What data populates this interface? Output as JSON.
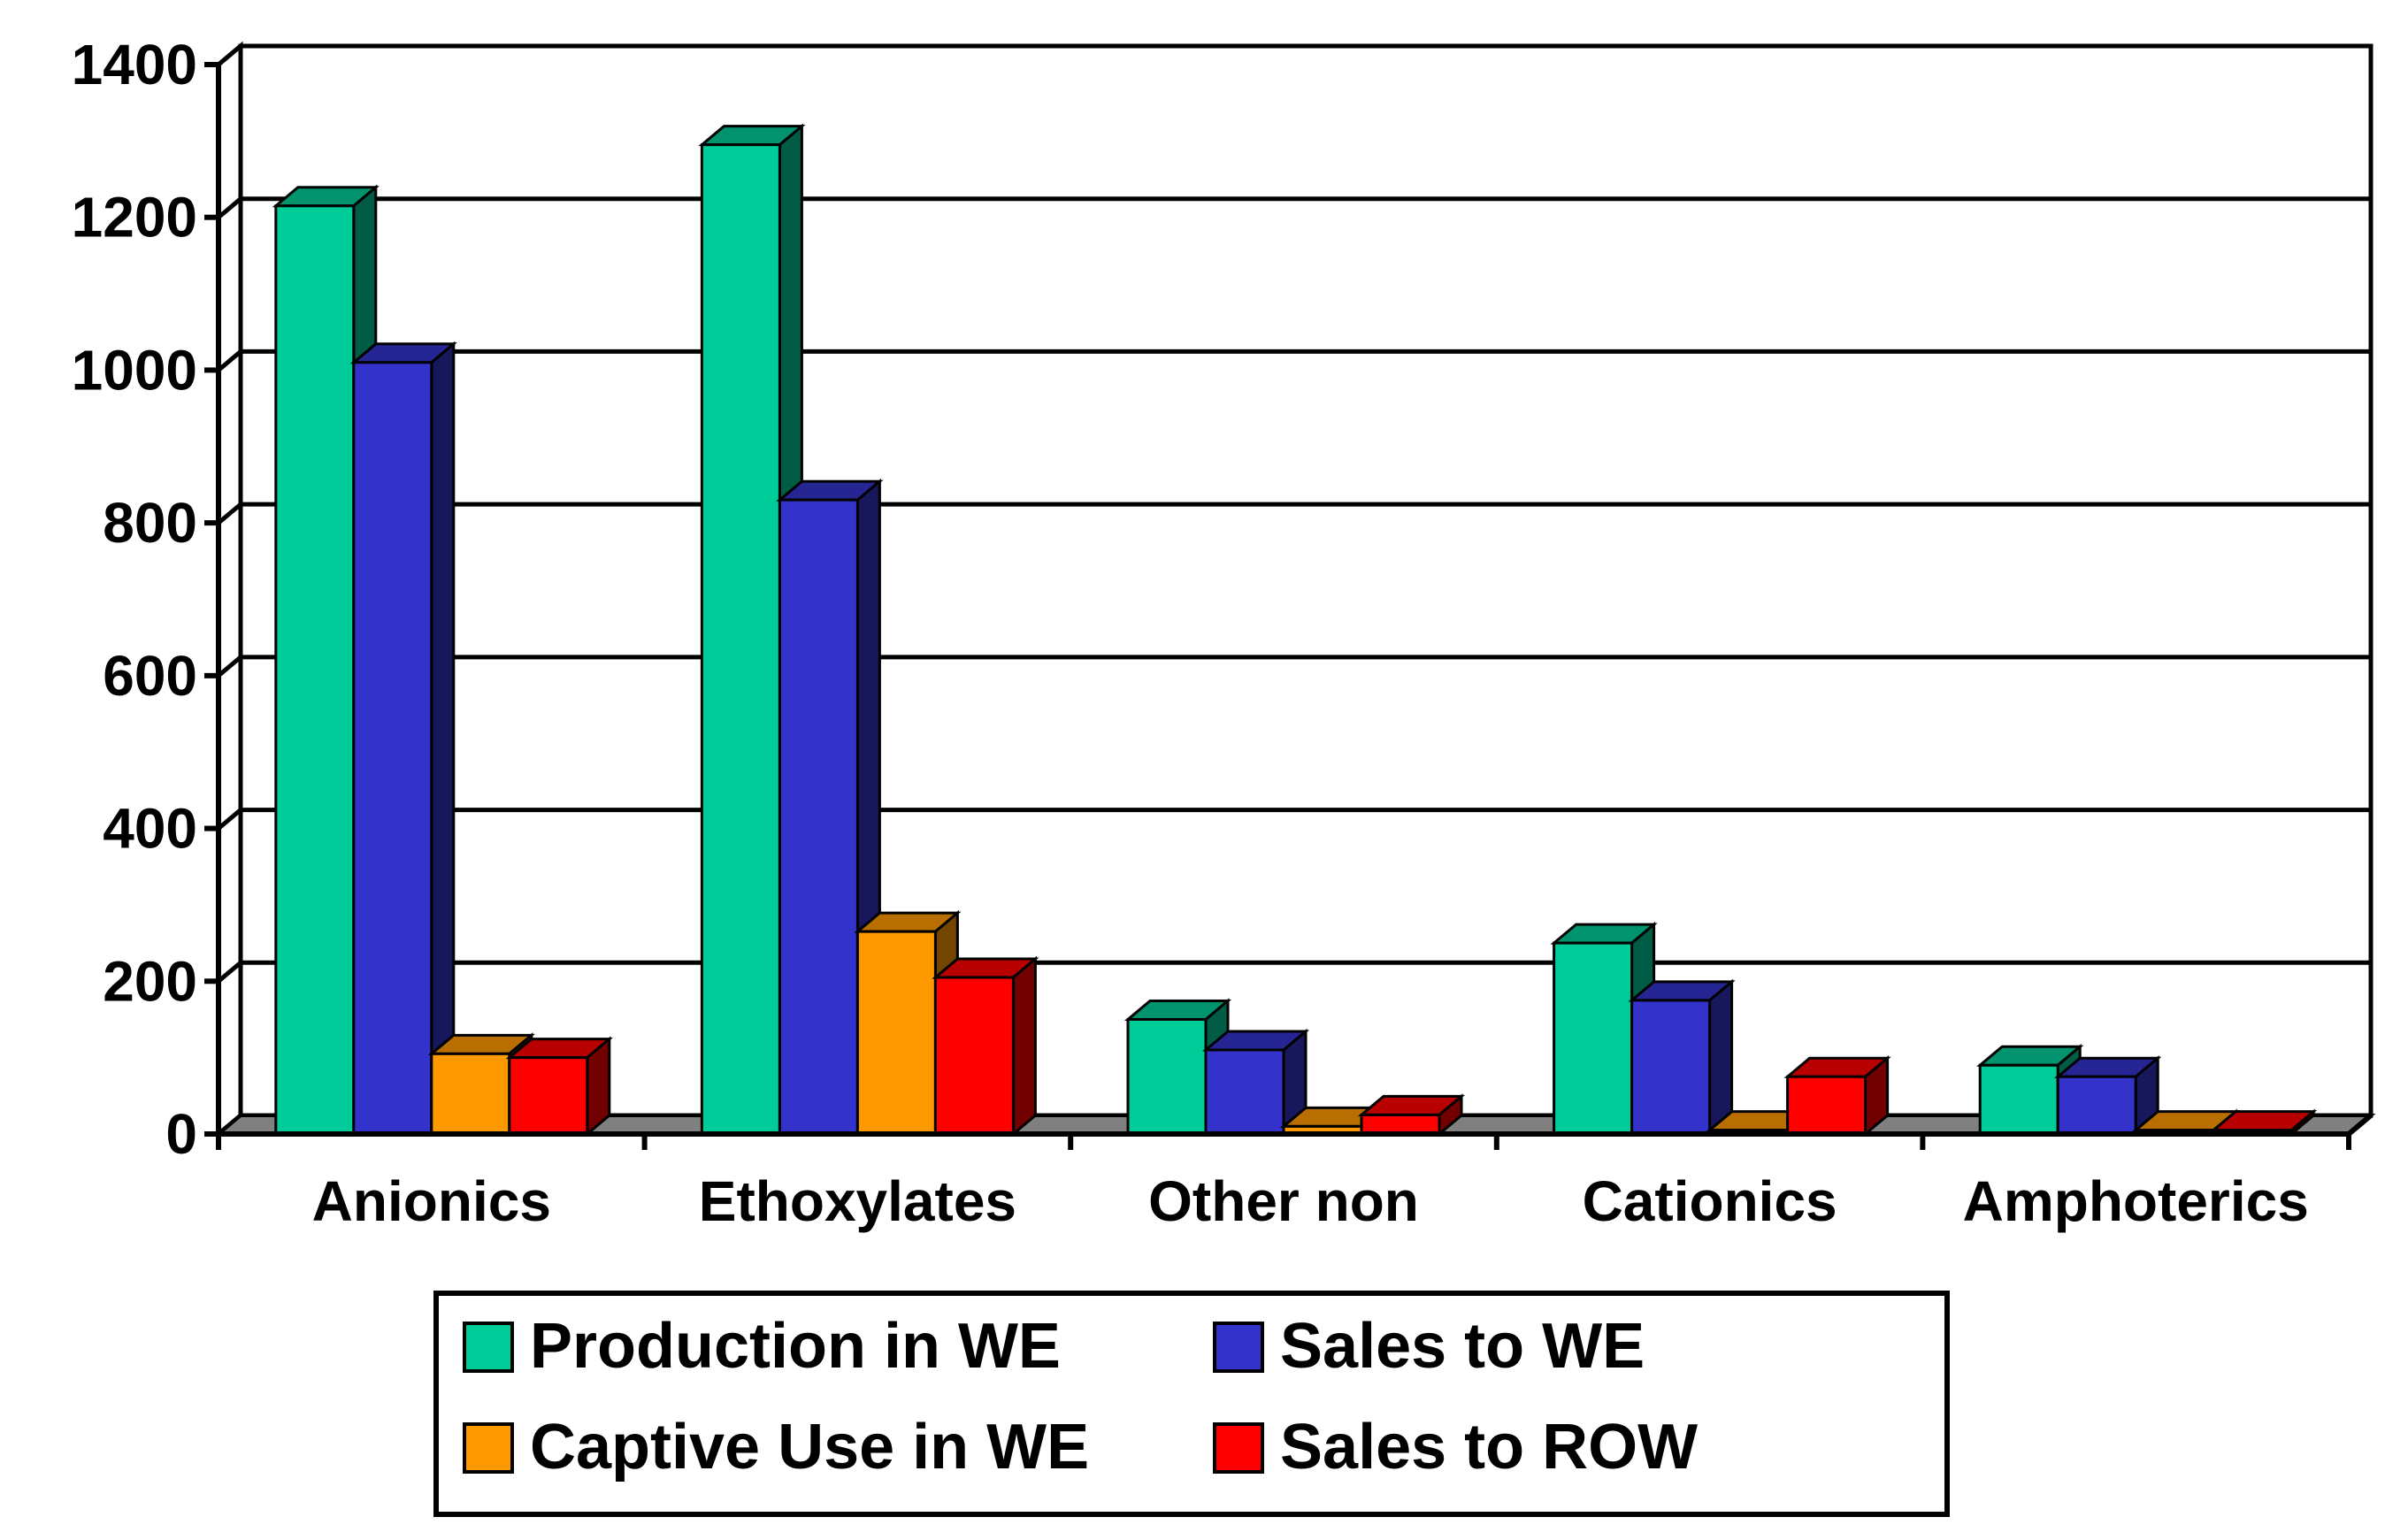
{
  "chart_data": {
    "type": "bar",
    "style": "3d-clustered-column",
    "title": "",
    "xlabel": "",
    "ylabel": "",
    "ylim": [
      0,
      1400
    ],
    "yticks": [
      0,
      200,
      400,
      600,
      800,
      1000,
      1200,
      1400
    ],
    "grid": true,
    "legend_position": "bottom",
    "categories": [
      "Anionics",
      "Ethoxylates",
      "Other non",
      "Cationics",
      "Amphoterics"
    ],
    "series": [
      {
        "name": "Production in WE",
        "color": "#00CC99",
        "values": [
          1215,
          1295,
          150,
          250,
          90
        ]
      },
      {
        "name": "Sales to WE",
        "color": "#3333CC",
        "values": [
          1010,
          830,
          110,
          175,
          75
        ]
      },
      {
        "name": "Captive Use in WE",
        "color": "#FF9900",
        "values": [
          105,
          265,
          10,
          5,
          5
        ]
      },
      {
        "name": "Sales to ROW",
        "color": "#FF0000",
        "values": [
          100,
          205,
          25,
          75,
          5
        ]
      }
    ]
  }
}
